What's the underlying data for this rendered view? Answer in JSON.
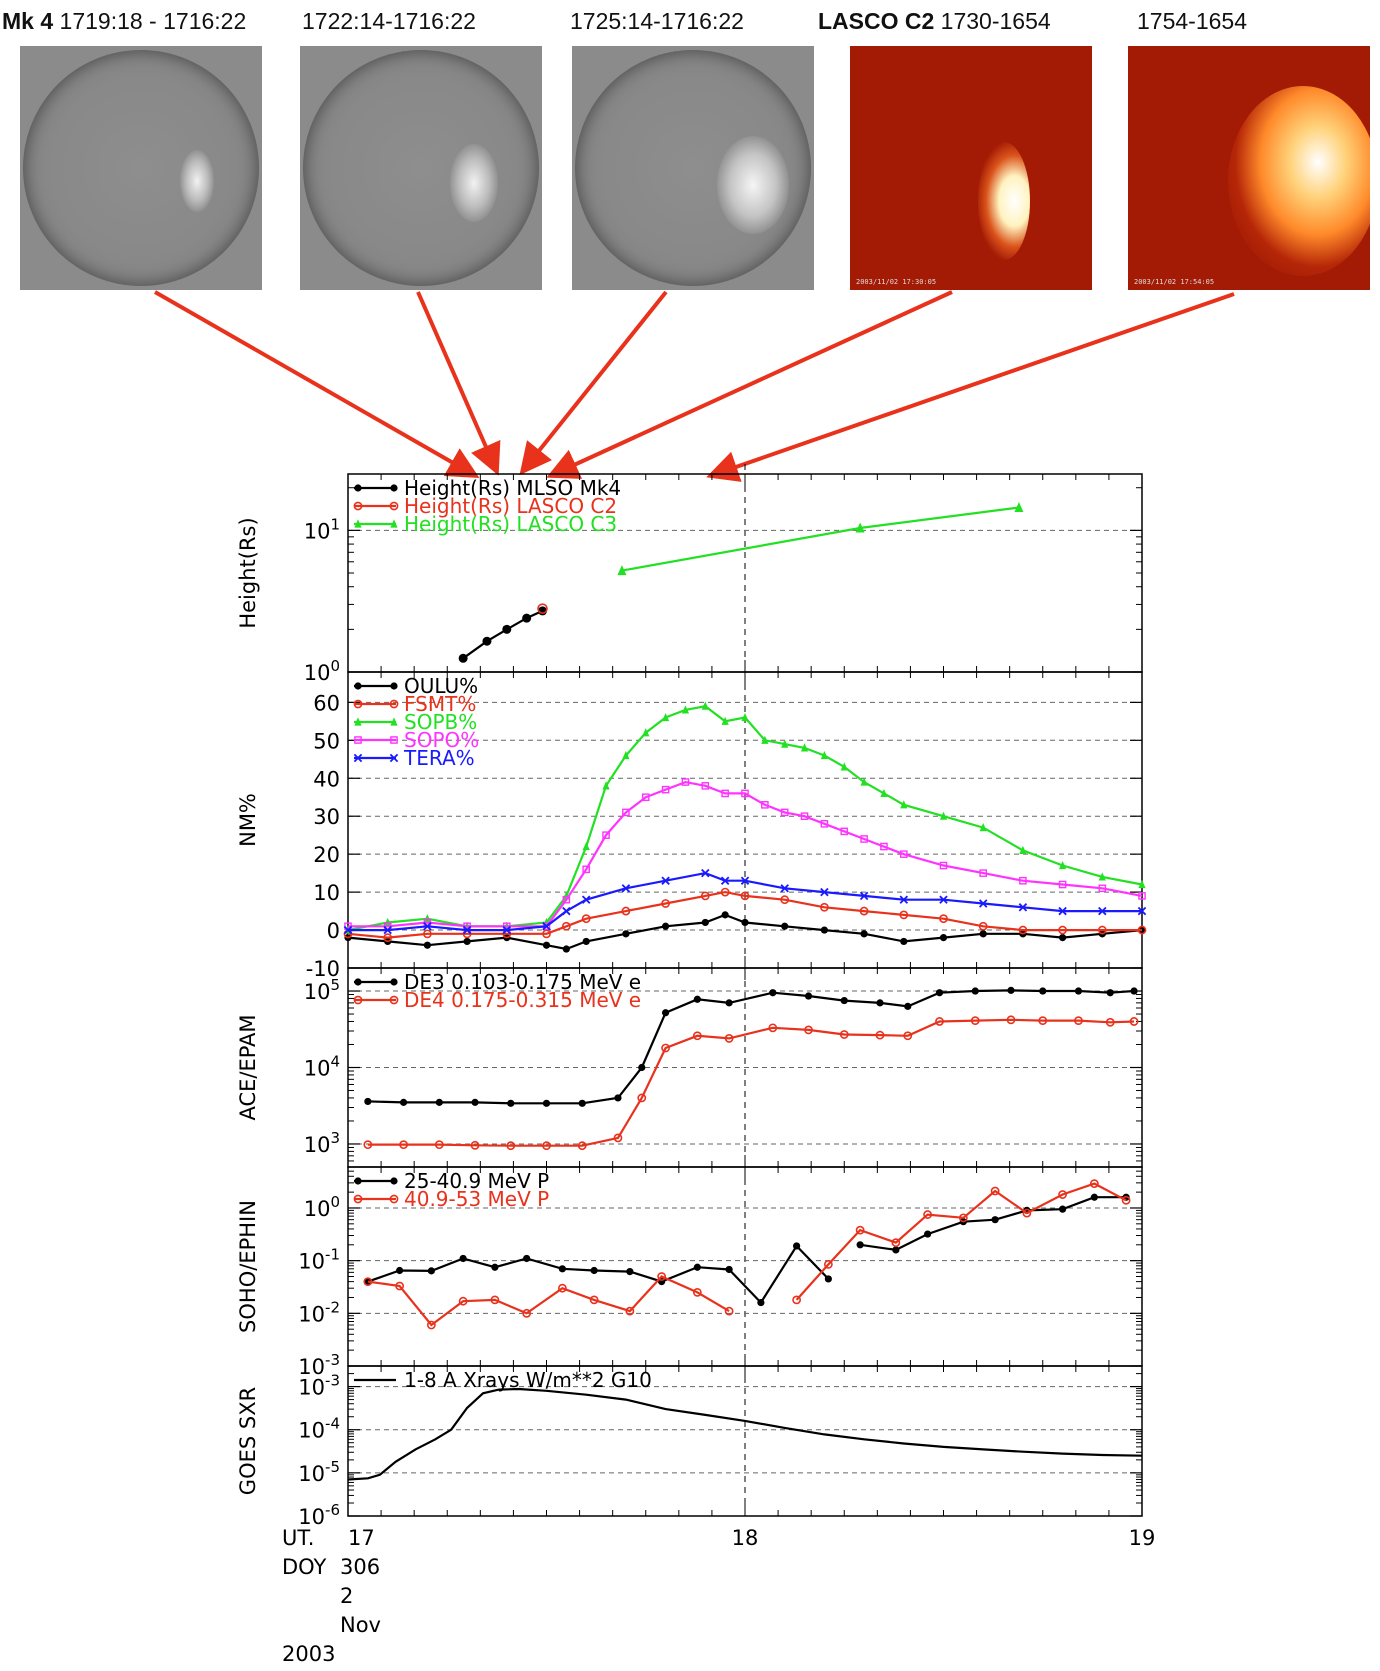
{
  "captions": [
    {
      "bold": "Mk 4",
      "text": " 1719:18 - 1716:22"
    },
    {
      "bold": "",
      "text": "1722:14-1716:22"
    },
    {
      "bold": "",
      "text": "1725:14-1716:22"
    },
    {
      "bold": "LASCO C2",
      "text": "  1730-1654"
    },
    {
      "bold": "",
      "text": "1754-1654"
    }
  ],
  "thumb_stamps": [
    "",
    "",
    "",
    "2003/11/02 17:30:05",
    "2003/11/02 17:54:05"
  ],
  "colors": {
    "arrow": "#e8321c",
    "mk4": "#000000",
    "c2": "#e8321c",
    "c3": "#22e022",
    "sopo": "#ff33ff",
    "tera": "#1a1aff",
    "gray_img": "#8b8b8b",
    "red_img": "#a31b05"
  },
  "time_axis": {
    "ticks": [
      {
        "value": 17,
        "label": "17"
      },
      {
        "value": 18,
        "label": "18"
      },
      {
        "value": 19,
        "label": "19"
      }
    ],
    "left_labels": [
      "UT.",
      "DOY"
    ],
    "sub_labels": [
      "306",
      "2",
      "Nov",
      "2003"
    ]
  },
  "chart_data": [
    {
      "type": "scatter",
      "ylabel": "Height(Rs)",
      "yscale": "log",
      "ylim": [
        1,
        25
      ],
      "yticks": [
        {
          "value": 1,
          "base": "10",
          "exp": "0"
        },
        {
          "value": 10,
          "base": "10",
          "exp": "1"
        }
      ],
      "legend_position": "top-left",
      "series": [
        {
          "name": "Height(Rs) MLSO Mk4",
          "color": "#000000",
          "marker": "dot",
          "line": true,
          "x": [
            17.29,
            17.35,
            17.4,
            17.45,
            17.49
          ],
          "y": [
            1.25,
            1.65,
            2.0,
            2.4,
            2.7
          ]
        },
        {
          "name": "Height(Rs) LASCO C2",
          "color": "#e8321c",
          "marker": "circle",
          "line": true,
          "x": [
            17.49
          ],
          "y": [
            2.8
          ]
        },
        {
          "name": "Height(Rs) LASCO C3",
          "color": "#22e022",
          "marker": "triangle",
          "line": true,
          "x": [
            17.69,
            18.29,
            18.69
          ],
          "y": [
            5.2,
            10.4,
            14.5
          ]
        }
      ]
    },
    {
      "type": "line",
      "ylabel": "NM%",
      "ylim": [
        -10,
        68
      ],
      "yticks": [
        {
          "value": -10,
          "label": "-10"
        },
        {
          "value": 0,
          "label": "0"
        },
        {
          "value": 10,
          "label": "10"
        },
        {
          "value": 20,
          "label": "20"
        },
        {
          "value": 30,
          "label": "30"
        },
        {
          "value": 40,
          "label": "40"
        },
        {
          "value": 50,
          "label": "50"
        },
        {
          "value": 60,
          "label": "60"
        }
      ],
      "legend_position": "top-left",
      "series": [
        {
          "name": "OULU%",
          "color": "#000000",
          "marker": "dot",
          "x": [
            17.0,
            17.1,
            17.2,
            17.3,
            17.4,
            17.5,
            17.55,
            17.6,
            17.7,
            17.8,
            17.9,
            17.95,
            18.0,
            18.1,
            18.2,
            18.3,
            18.4,
            18.5,
            18.6,
            18.7,
            18.8,
            18.9,
            19.0
          ],
          "y": [
            -2,
            -3,
            -4,
            -3,
            -2,
            -4,
            -5,
            -3,
            -1,
            1,
            2,
            4,
            2,
            1,
            0,
            -1,
            -3,
            -2,
            -1,
            -1,
            -2,
            -1,
            0
          ]
        },
        {
          "name": "FSMT%",
          "color": "#e8321c",
          "marker": "circle",
          "x": [
            17.0,
            17.1,
            17.2,
            17.3,
            17.4,
            17.5,
            17.55,
            17.6,
            17.7,
            17.8,
            17.9,
            17.95,
            18.0,
            18.1,
            18.2,
            18.3,
            18.4,
            18.5,
            18.6,
            18.7,
            18.8,
            18.9,
            19.0
          ],
          "y": [
            -1,
            -2,
            -1,
            -1,
            -1,
            -1,
            1,
            3,
            5,
            7,
            9,
            10,
            9,
            8,
            6,
            5,
            4,
            3,
            1,
            0,
            0,
            0,
            0
          ]
        },
        {
          "name": "SOPB%",
          "color": "#22e022",
          "marker": "triangle",
          "x": [
            17.0,
            17.1,
            17.2,
            17.3,
            17.4,
            17.5,
            17.55,
            17.6,
            17.65,
            17.7,
            17.75,
            17.8,
            17.85,
            17.9,
            17.95,
            18.0,
            18.05,
            18.1,
            18.15,
            18.2,
            18.25,
            18.3,
            18.35,
            18.4,
            18.5,
            18.6,
            18.7,
            18.8,
            18.9,
            19.0
          ],
          "y": [
            0,
            2,
            3,
            1,
            1,
            2,
            9,
            22,
            38,
            46,
            52,
            56,
            58,
            59,
            55,
            56,
            50,
            49,
            48,
            46,
            43,
            39,
            36,
            33,
            30,
            27,
            21,
            17,
            14,
            12
          ]
        },
        {
          "name": "SOPO%",
          "color": "#ff33ff",
          "marker": "square",
          "x": [
            17.0,
            17.1,
            17.2,
            17.3,
            17.4,
            17.5,
            17.55,
            17.6,
            17.65,
            17.7,
            17.75,
            17.8,
            17.85,
            17.9,
            17.95,
            18.0,
            18.05,
            18.1,
            18.15,
            18.2,
            18.25,
            18.3,
            18.35,
            18.4,
            18.5,
            18.6,
            18.7,
            18.8,
            18.9,
            19.0
          ],
          "y": [
            1,
            1,
            2,
            1,
            1,
            1,
            8,
            16,
            25,
            31,
            35,
            37,
            39,
            38,
            36,
            36,
            33,
            31,
            30,
            28,
            26,
            24,
            22,
            20,
            17,
            15,
            13,
            12,
            11,
            9
          ]
        },
        {
          "name": "TERA%",
          "color": "#1a1aff",
          "marker": "x",
          "x": [
            17.0,
            17.1,
            17.2,
            17.3,
            17.4,
            17.5,
            17.55,
            17.6,
            17.7,
            17.8,
            17.9,
            17.95,
            18.0,
            18.1,
            18.2,
            18.3,
            18.4,
            18.5,
            18.6,
            18.7,
            18.8,
            18.9,
            19.0
          ],
          "y": [
            0,
            0,
            1,
            0,
            0,
            1,
            5,
            8,
            11,
            13,
            15,
            13,
            13,
            11,
            10,
            9,
            8,
            8,
            7,
            6,
            5,
            5,
            5
          ]
        }
      ]
    },
    {
      "type": "line",
      "ylabel": "ACE/EPAM",
      "yscale": "log",
      "ylim": [
        500,
        200000
      ],
      "yticks": [
        {
          "value": 1000,
          "base": "10",
          "exp": "3"
        },
        {
          "value": 10000,
          "base": "10",
          "exp": "4"
        },
        {
          "value": 100000,
          "base": "10",
          "exp": "5"
        }
      ],
      "legend_position": "top-left",
      "series": [
        {
          "name": "DE3 0.103-0.175 MeV e",
          "color": "#000000",
          "marker": "dot",
          "x": [
            17.05,
            17.14,
            17.23,
            17.32,
            17.41,
            17.5,
            17.59,
            17.68,
            17.74,
            17.8,
            17.88,
            17.96,
            18.07,
            18.16,
            18.25,
            18.34,
            18.41,
            18.49,
            18.58,
            18.67,
            18.75,
            18.84,
            18.92,
            18.98
          ],
          "y": [
            3600,
            3500,
            3500,
            3500,
            3400,
            3400,
            3400,
            4000,
            10000,
            52000,
            78000,
            70000,
            95000,
            86000,
            75000,
            70000,
            63000,
            95000,
            100000,
            102000,
            100000,
            100000,
            95000,
            100000
          ]
        },
        {
          "name": "DE4 0.175-0.315 MeV e",
          "color": "#e8321c",
          "marker": "circle",
          "x": [
            17.05,
            17.14,
            17.23,
            17.32,
            17.41,
            17.5,
            17.59,
            17.68,
            17.74,
            17.8,
            17.88,
            17.96,
            18.07,
            18.16,
            18.25,
            18.34,
            18.41,
            18.49,
            18.58,
            18.67,
            18.75,
            18.84,
            18.92,
            18.98
          ],
          "y": [
            980,
            980,
            980,
            960,
            950,
            950,
            950,
            1200,
            4000,
            18000,
            26000,
            24000,
            33000,
            31000,
            27000,
            26500,
            26000,
            40000,
            41000,
            42000,
            41000,
            41000,
            39000,
            40000
          ]
        }
      ]
    },
    {
      "type": "line",
      "ylabel": "SOHO/EPHIN",
      "yscale": "log",
      "ylim": [
        0.001,
        6
      ],
      "yticks": [
        {
          "value": 0.001,
          "base": "10",
          "exp": "-3"
        },
        {
          "value": 0.01,
          "base": "10",
          "exp": "-2"
        },
        {
          "value": 0.1,
          "base": "10",
          "exp": "-1"
        },
        {
          "value": 1,
          "base": "10",
          "exp": "0"
        }
      ],
      "legend_position": "top-left",
      "series": [
        {
          "name": "25-40.9 MeV P",
          "color": "#000000",
          "marker": "dot",
          "x": [
            17.05,
            17.13,
            17.21,
            17.29,
            17.37,
            17.45,
            17.54,
            17.62,
            17.71,
            17.79,
            17.88,
            17.96,
            18.04,
            18.13,
            18.21,
            null,
            18.29,
            18.38,
            18.46,
            18.55,
            18.63,
            18.71,
            18.8,
            18.88,
            18.96
          ],
          "y": [
            0.04,
            0.065,
            0.064,
            0.11,
            0.075,
            0.11,
            0.07,
            0.065,
            0.062,
            0.04,
            0.075,
            0.068,
            0.016,
            0.19,
            0.045,
            null,
            0.2,
            0.16,
            0.32,
            0.55,
            0.6,
            0.9,
            0.95,
            1.6,
            1.6
          ]
        },
        {
          "name": "40.9-53 MeV P",
          "color": "#e8321c",
          "marker": "circle",
          "x": [
            17.05,
            17.13,
            17.21,
            17.29,
            17.37,
            17.45,
            17.54,
            17.62,
            17.71,
            17.79,
            17.88,
            17.96,
            null,
            18.13,
            18.21,
            18.29,
            18.38,
            18.46,
            18.55,
            18.63,
            18.71,
            18.8,
            18.88,
            18.96
          ],
          "y": [
            0.04,
            0.033,
            0.006,
            0.017,
            0.018,
            0.01,
            0.03,
            0.018,
            0.011,
            0.05,
            0.025,
            0.011,
            null,
            0.018,
            0.085,
            0.38,
            0.22,
            0.75,
            0.65,
            2.1,
            0.8,
            1.8,
            2.9,
            1.4
          ]
        }
      ]
    },
    {
      "type": "line",
      "ylabel": "GOES SXR",
      "yscale": "log",
      "ylim": [
        1e-06,
        0.003
      ],
      "yticks": [
        {
          "value": 1e-06,
          "base": "10",
          "exp": "-6"
        },
        {
          "value": 1e-05,
          "base": "10",
          "exp": "-5"
        },
        {
          "value": 0.0001,
          "base": "10",
          "exp": "-4"
        },
        {
          "value": 0.001,
          "base": "10",
          "exp": "-3"
        }
      ],
      "legend_position": "top-left",
      "series": [
        {
          "name": "1-8 A Xrays W/m**2 G10",
          "color": "#000000",
          "marker": "none",
          "x": [
            17.0,
            17.05,
            17.08,
            17.12,
            17.17,
            17.22,
            17.26,
            17.3,
            17.34,
            17.38,
            17.43,
            17.5,
            17.6,
            17.7,
            17.8,
            17.9,
            18.0,
            18.1,
            18.2,
            18.3,
            18.4,
            18.5,
            18.6,
            18.7,
            18.8,
            18.9,
            19.0
          ],
          "y": [
            7e-06,
            7.5e-06,
            9e-06,
            1.8e-05,
            3.5e-05,
            6e-05,
            0.0001,
            0.00032,
            0.0007,
            0.00085,
            0.00088,
            0.0008,
            0.00065,
            0.0005,
            0.0003,
            0.00022,
            0.00016,
            0.00011,
            7.8e-05,
            6e-05,
            4.8e-05,
            4e-05,
            3.5e-05,
            3.1e-05,
            2.8e-05,
            2.6e-05,
            2.5e-05
          ]
        }
      ]
    }
  ]
}
